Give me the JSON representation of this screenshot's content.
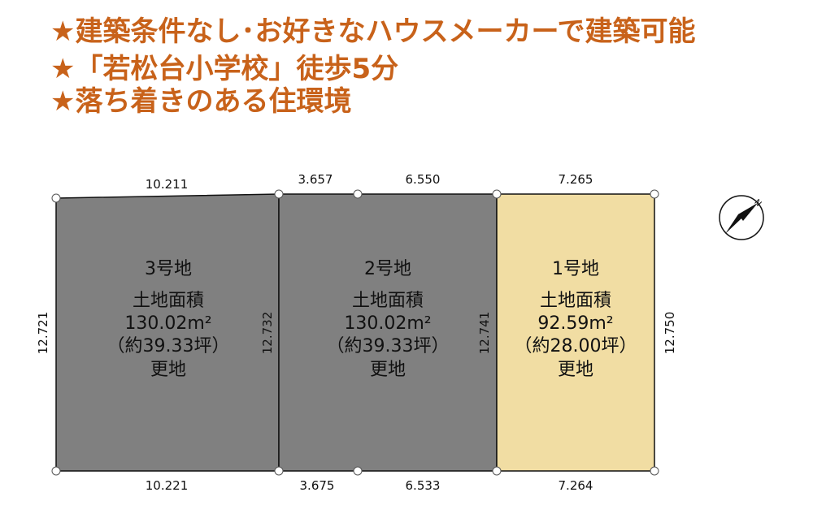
{
  "headlines": [
    "★建築条件なし･お好きなハウスメーカーで建築可能",
    "★「若松台小学校」徒歩5分",
    "★落ち着きのある住環境"
  ],
  "lots": [
    {
      "name": "3号地",
      "area_label": "土地面積",
      "area": "130.02m²",
      "tsubo": "（約39.33坪）",
      "status": "更地"
    },
    {
      "name": "2号地",
      "area_label": "土地面積",
      "area": "130.02m²",
      "tsubo": "（約39.33坪）",
      "status": "更地"
    },
    {
      "name": "1号地",
      "area_label": "土地面積",
      "area": "92.59m²",
      "tsubo": "（約28.00坪）",
      "status": "更地"
    }
  ],
  "dimensions": {
    "top": [
      "10.211",
      "3.657",
      "6.550",
      "7.265"
    ],
    "bottom": [
      "10.221",
      "3.675",
      "6.533",
      "7.264"
    ],
    "sides": [
      "12.721",
      "12.732",
      "12.741",
      "12.750"
    ]
  },
  "compass": {
    "label": "N"
  }
}
